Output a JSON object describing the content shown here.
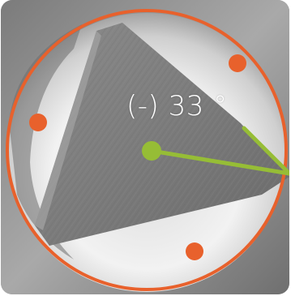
{
  "measurement": {
    "angle_readout": "(-) 33 °",
    "angle_degrees": -33
  },
  "colors": {
    "alignment_ring": "#e8612c",
    "reference_dot": "#e8612c",
    "angle_indicator": "#96bd36",
    "readout_text": "#ffffff"
  },
  "icons": {
    "pivot": "pivot-dot-icon",
    "reference_marker": "reference-dot-icon"
  }
}
